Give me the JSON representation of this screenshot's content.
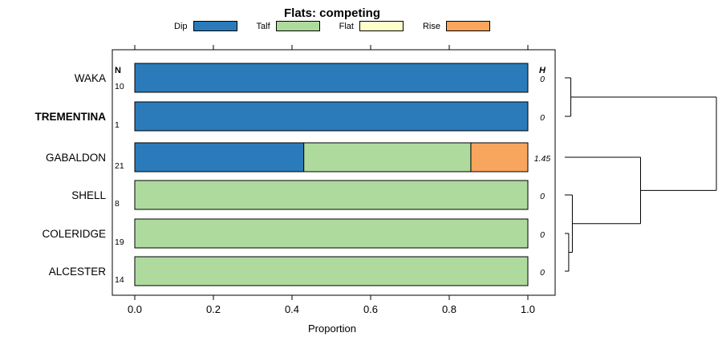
{
  "chart_data": {
    "type": "bar",
    "orientation": "horizontal",
    "title": "Flats: competing",
    "xlabel": "Proportion",
    "xlim": [
      0,
      1
    ],
    "xticks": [
      "0.0",
      "0.2",
      "0.4",
      "0.6",
      "0.8",
      "1.0"
    ],
    "grid": false,
    "legend_position": "top",
    "legend": [
      {
        "label": "Dip",
        "color": "#2B7BBA"
      },
      {
        "label": "Talf",
        "color": "#AEDA9E"
      },
      {
        "label": "Flat",
        "color": "#FFFFCC"
      },
      {
        "label": "Rise",
        "color": "#F8A55E"
      }
    ],
    "columns": {
      "n_header": "N",
      "h_header": "H"
    },
    "rows": [
      {
        "label": "WAKA",
        "bold": false,
        "n": "10",
        "h": "0",
        "segments": [
          {
            "category": "Dip",
            "value": 1.0
          }
        ]
      },
      {
        "label": "TREMENTINA",
        "bold": true,
        "n": "1",
        "h": "0",
        "segments": [
          {
            "category": "Dip",
            "value": 1.0
          }
        ]
      },
      {
        "label": "GABALDON",
        "bold": false,
        "n": "21",
        "h": "1.45",
        "segments": [
          {
            "category": "Dip",
            "value": 0.43
          },
          {
            "category": "Talf",
            "value": 0.425
          },
          {
            "category": "Rise",
            "value": 0.145
          }
        ]
      },
      {
        "label": "SHELL",
        "bold": false,
        "n": "8",
        "h": "0",
        "segments": [
          {
            "category": "Talf",
            "value": 1.0
          }
        ]
      },
      {
        "label": "COLERIDGE",
        "bold": false,
        "n": "19",
        "h": "0",
        "segments": [
          {
            "category": "Talf",
            "value": 1.0
          }
        ]
      },
      {
        "label": "ALCESTER",
        "bold": false,
        "n": "14",
        "h": "0",
        "segments": [
          {
            "category": "Talf",
            "value": 1.0
          }
        ]
      }
    ],
    "dendrogram": {
      "tree": {
        "height": 1.0,
        "children": [
          {
            "height": 0.04,
            "children": [
              {
                "leaf": "WAKA"
              },
              {
                "leaf": "TREMENTINA"
              }
            ]
          },
          {
            "height": 0.5,
            "children": [
              {
                "leaf": "GABALDON"
              },
              {
                "height": 0.05,
                "children": [
                  {
                    "leaf": "SHELL"
                  },
                  {
                    "height": 0.026,
                    "children": [
                      {
                        "leaf": "COLERIDGE"
                      },
                      {
                        "leaf": "ALCESTER"
                      }
                    ]
                  }
                ]
              }
            ]
          }
        ]
      }
    }
  }
}
